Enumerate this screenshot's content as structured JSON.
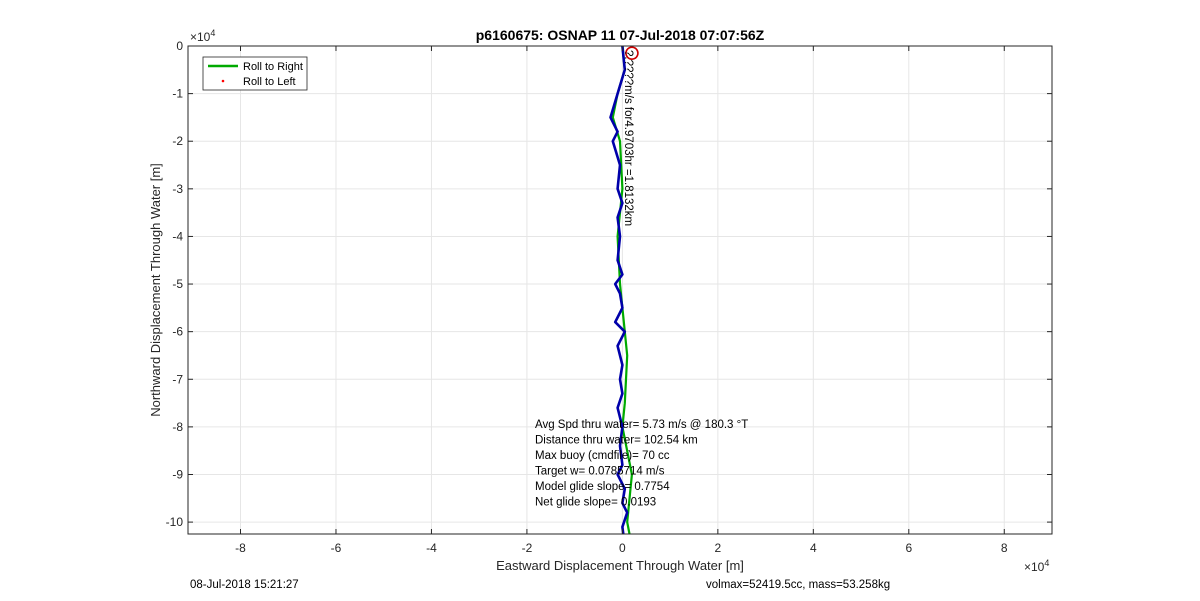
{
  "chart_data": {
    "type": "line",
    "title": "p6160675: OSNAP 11 07-Jul-2018 07:07:56Z",
    "xlabel": "Eastward Displacement Through Water [m]",
    "ylabel": "Northward Displacement Through Water [m]",
    "x_exponent_label": "×10",
    "x_exponent_power": "4",
    "y_exponent_label": "×10",
    "y_exponent_power": "4",
    "xlim": [
      -9.1,
      9.0
    ],
    "ylim": [
      -10.25,
      0
    ],
    "xticks": [
      -8,
      -6,
      -4,
      -2,
      0,
      2,
      4,
      6,
      8
    ],
    "xtick_labels": [
      "-8",
      "-6",
      "-4",
      "-2",
      "0",
      "2",
      "4",
      "6",
      "8"
    ],
    "yticks": [
      0,
      -1,
      -2,
      -3,
      -4,
      -5,
      -6,
      -7,
      -8,
      -9,
      -10
    ],
    "ytick_labels": [
      "0",
      "-1",
      "-2",
      "-3",
      "-4",
      "-5",
      "-6",
      "-7",
      "-8",
      "-9",
      "-10"
    ],
    "grid": true,
    "legend": {
      "location": "top-left",
      "entries": [
        "Roll to Right",
        "Roll to Left"
      ]
    },
    "series": [
      {
        "name": "Roll to Right",
        "color": "#00aa00",
        "points": [
          [
            0,
            0
          ],
          [
            0.05,
            -0.5
          ],
          [
            -0.1,
            -1.0
          ],
          [
            -0.2,
            -1.5
          ],
          [
            -0.05,
            -2.0
          ],
          [
            0.0,
            -3.0
          ],
          [
            -0.1,
            -4.0
          ],
          [
            -0.05,
            -5.0
          ],
          [
            0.0,
            -5.5
          ],
          [
            0.1,
            -6.5
          ],
          [
            0.05,
            -7.5
          ],
          [
            0.0,
            -8.0
          ],
          [
            0.2,
            -9.0
          ],
          [
            0.1,
            -10.0
          ],
          [
            0.15,
            -10.25
          ]
        ]
      },
      {
        "name": "Roll to Left",
        "color": "#ff0000",
        "points": []
      },
      {
        "name": "",
        "color": "#0000aa",
        "points": [
          [
            0,
            0
          ],
          [
            0.05,
            -0.5
          ],
          [
            -0.1,
            -1.0
          ],
          [
            -0.25,
            -1.5
          ],
          [
            -0.1,
            -1.8
          ],
          [
            -0.2,
            -2.0
          ],
          [
            -0.05,
            -2.5
          ],
          [
            -0.1,
            -3.0
          ],
          [
            0.0,
            -3.3
          ],
          [
            -0.1,
            -3.6
          ],
          [
            -0.05,
            -4.0
          ],
          [
            -0.1,
            -4.5
          ],
          [
            0.0,
            -4.8
          ],
          [
            -0.15,
            -5.0
          ],
          [
            -0.05,
            -5.2
          ],
          [
            0.0,
            -5.5
          ],
          [
            -0.15,
            -5.8
          ],
          [
            0.05,
            -6.0
          ],
          [
            -0.1,
            -6.3
          ],
          [
            0.0,
            -6.7
          ],
          [
            -0.05,
            -7.0
          ],
          [
            0.0,
            -7.3
          ],
          [
            -0.1,
            -7.6
          ],
          [
            0.0,
            -8.0
          ],
          [
            -0.05,
            -8.4
          ],
          [
            0.0,
            -8.8
          ],
          [
            -0.1,
            -9.0
          ],
          [
            0.05,
            -9.3
          ],
          [
            0.0,
            -9.6
          ],
          [
            0.1,
            -9.8
          ],
          [
            0.0,
            -10.1
          ],
          [
            0.02,
            -10.25
          ]
        ]
      }
    ],
    "markers": [
      {
        "type": "circle",
        "color": "#cc0000",
        "x": 0.2,
        "y": -0.15
      }
    ],
    "annotations": {
      "vertical_text": "?.????m/s for4.9703hr =1.8132km",
      "stats": [
        "Avg Spd thru water=  5.73 m/s @ 180.3 °T",
        "Distance thru water= 102.54 km",
        "Max buoy (cmdfile)= 70 cc",
        "Target w= 0.0785714 m/s",
        "Model glide slope= 0.7754",
        "Net glide slope= 0.0193"
      ]
    },
    "footer_left": "08-Jul-2018 15:21:27",
    "footer_right": "volmax=52419.5cc, mass=53.258kg"
  }
}
